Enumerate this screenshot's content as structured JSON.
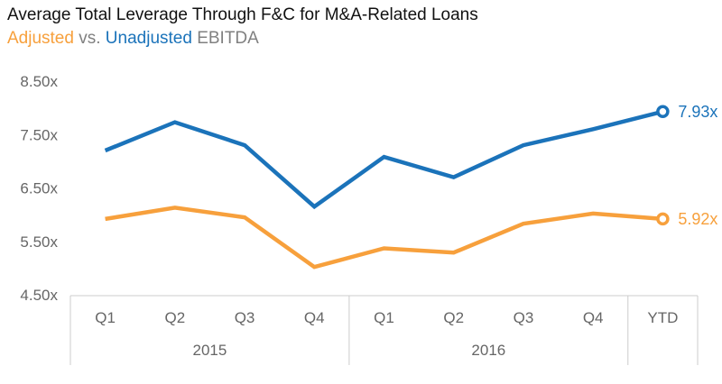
{
  "title": "Average Total Leverage Through F&C for M&A-Related Loans",
  "subtitle": {
    "adjusted": "Adjusted",
    "vs": "vs.",
    "unadjusted": "Unadjusted",
    "ebitda": "EBITDA"
  },
  "colors": {
    "adjusted": "#f7a03c",
    "unadjusted": "#1b73ba",
    "axis_text": "#666666",
    "axis_line": "#cccccc"
  },
  "chart_data": {
    "type": "line",
    "title": "Average Total Leverage Through F&C for M&A-Related Loans",
    "categories": [
      "Q1",
      "Q2",
      "Q3",
      "Q4",
      "Q1",
      "Q2",
      "Q3",
      "Q4",
      "YTD"
    ],
    "groups": [
      {
        "label": "2015",
        "span": 4
      },
      {
        "label": "2016",
        "span": 4
      },
      {
        "label": "",
        "span": 1
      }
    ],
    "y_ticks": [
      "8.50x",
      "7.50x",
      "6.50x",
      "5.50x",
      "4.50x"
    ],
    "y_tick_values": [
      8.5,
      7.5,
      6.5,
      5.5,
      4.5
    ],
    "ylim": [
      4.5,
      8.5
    ],
    "grid": false,
    "series": [
      {
        "name": "Unadjusted",
        "color_key": "unadjusted",
        "values": [
          7.2,
          7.73,
          7.3,
          6.15,
          7.08,
          6.7,
          7.3,
          7.6,
          7.93
        ],
        "end_label": "7.93x"
      },
      {
        "name": "Adjusted",
        "color_key": "adjusted",
        "values": [
          5.92,
          6.13,
          5.95,
          5.02,
          5.37,
          5.29,
          5.83,
          6.02,
          5.92
        ],
        "end_label": "5.92x"
      }
    ]
  }
}
